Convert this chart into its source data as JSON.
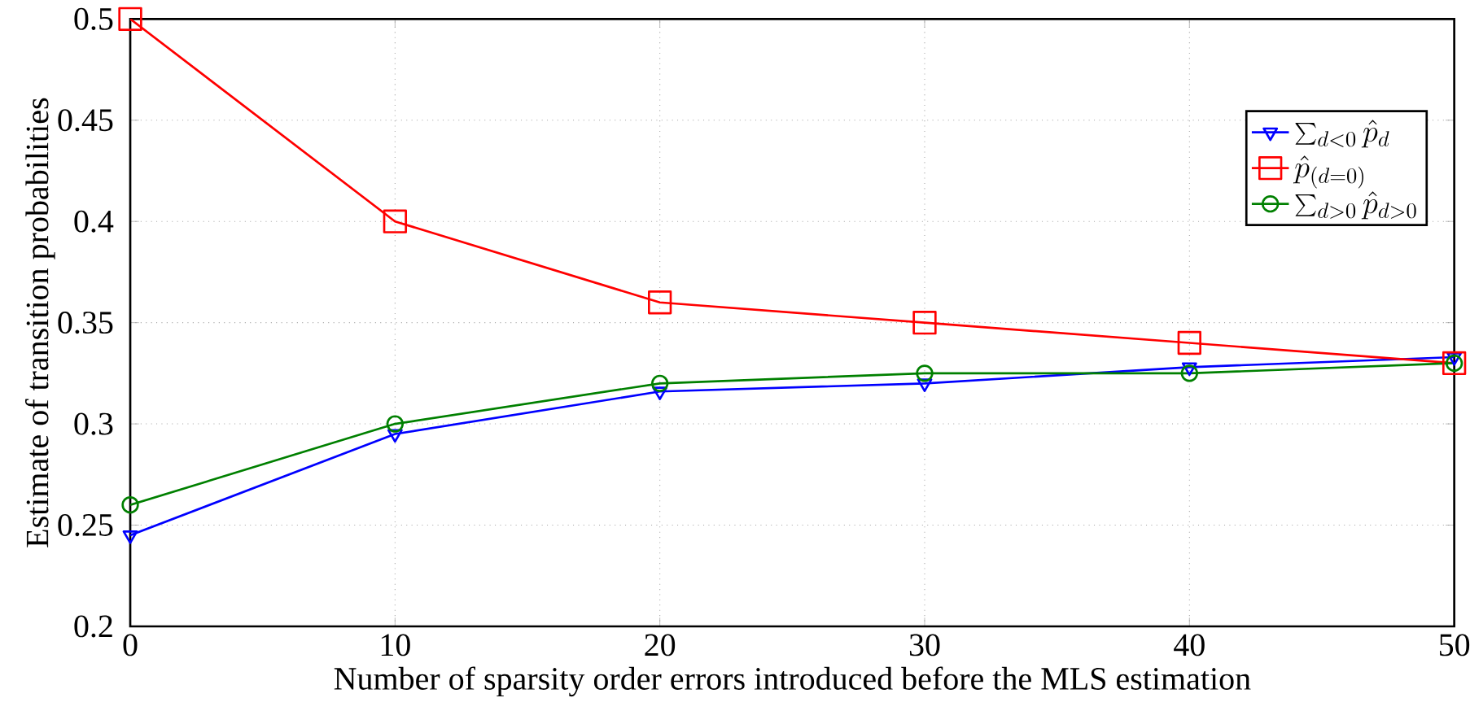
{
  "chart_data": {
    "type": "line",
    "xlabel": "Number of sparsity order errors introduced before the MLS estimation",
    "ylabel": "Estimate of transition probabilities",
    "x": [
      0,
      10,
      20,
      30,
      40,
      50
    ],
    "series": [
      {
        "name": "\\sum_{d<0}\\hat{p}_d",
        "color": "#0000ff",
        "marker": "triangle",
        "values": [
          0.245,
          0.295,
          0.316,
          0.32,
          0.328,
          0.333
        ]
      },
      {
        "name": "\\hat{p}_{(d=0)}",
        "color": "#ff0000",
        "marker": "square",
        "values": [
          0.5,
          0.4,
          0.36,
          0.35,
          0.34,
          0.33
        ]
      },
      {
        "name": "\\sum_{d>0}\\hat{p}_{d>0}",
        "color": "#008000",
        "marker": "circle",
        "values": [
          0.26,
          0.3,
          0.32,
          0.325,
          0.325,
          0.33
        ]
      }
    ],
    "xlim": [
      0,
      50
    ],
    "ylim": [
      0.2,
      0.5
    ],
    "xticks": [
      0,
      10,
      20,
      30,
      40,
      50
    ],
    "yticks": [
      0.2,
      0.25,
      0.3,
      0.35,
      0.4,
      0.45,
      0.5
    ],
    "grid": true,
    "legend": "top right",
    "line_style": "solid"
  }
}
